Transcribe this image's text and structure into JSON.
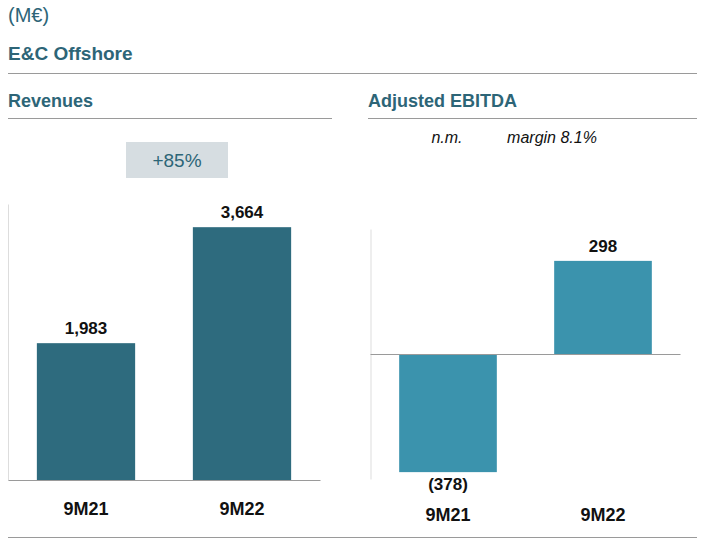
{
  "header": {
    "unit": "(M€)",
    "title": "E&C Offshore"
  },
  "chart_data": [
    {
      "type": "bar",
      "title": "Revenues",
      "categories": [
        "9M21",
        "9M22"
      ],
      "values": [
        1983,
        3664
      ],
      "value_labels": [
        "1,983",
        "3,664"
      ],
      "color": "#2e6b7e",
      "data_labels": true,
      "tick_labels": "x",
      "ylim": [
        0,
        4000
      ],
      "yticks": [],
      "annotations": [
        "+85%"
      ]
    },
    {
      "type": "bar",
      "title": "Adjusted EBITDA",
      "categories": [
        "9M21",
        "9M22"
      ],
      "values": [
        -378,
        298
      ],
      "value_labels": [
        "(378)",
        "298"
      ],
      "color": "#3b93ad",
      "data_labels": true,
      "tick_labels": "x",
      "ylim": [
        -400,
        400
      ],
      "yticks": [],
      "annotations": [
        "n.m.",
        "margin 8.1%"
      ]
    }
  ]
}
